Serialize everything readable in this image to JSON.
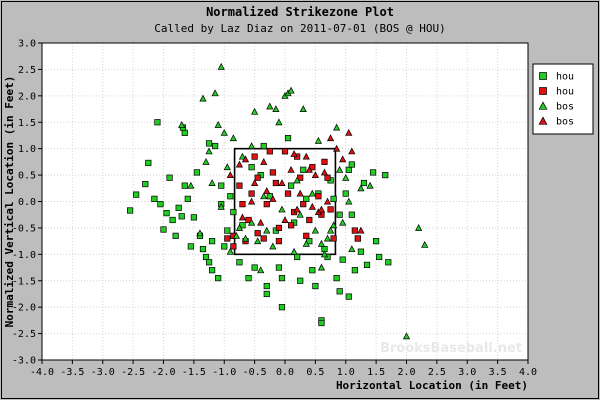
{
  "chart_data": {
    "type": "scatter",
    "title": "Normalized Strikezone Plot",
    "subtitle": "Called by Laz Diaz on 2011-07-01 (BOS @ HOU)",
    "xlabel": "Horizontal Location (in Feet)",
    "ylabel": "Normalized Vertical Location (in Feet)",
    "xlim": [
      -4.0,
      4.0
    ],
    "ylim": [
      -3.0,
      3.0
    ],
    "x_ticks": [
      "-4.0",
      "-3.5",
      "-3.0",
      "-2.5",
      "-2.0",
      "-1.5",
      "-1.0",
      "-0.5",
      "0.0",
      "0.5",
      "1.0",
      "1.5",
      "2.0",
      "2.5",
      "3.0",
      "3.5",
      "4.0"
    ],
    "y_ticks": [
      "3.0",
      "2.5",
      "2.0",
      "1.5",
      "1.0",
      "0.5",
      "0.0",
      "-0.5",
      "-1.0",
      "-1.5",
      "-2.0",
      "-2.5",
      "-3.0"
    ],
    "grid": true,
    "strike_zone": {
      "x": [
        -0.83,
        0.83
      ],
      "y": [
        -1.0,
        1.0
      ]
    },
    "legend_position": "right",
    "watermark": "BrooksBaseball.net",
    "series": [
      {
        "name": "hou",
        "marker": "square",
        "color": "#22cc22",
        "points": [
          [
            -2.55,
            -0.17
          ],
          [
            -2.45,
            0.13
          ],
          [
            -2.3,
            0.33
          ],
          [
            -2.25,
            0.73
          ],
          [
            -2.1,
            1.5
          ],
          [
            -2.15,
            0.05
          ],
          [
            -2.05,
            -0.05
          ],
          [
            -2.0,
            -0.53
          ],
          [
            -1.95,
            -0.22
          ],
          [
            -1.9,
            0.45
          ],
          [
            -1.85,
            -0.35
          ],
          [
            -1.8,
            -0.65
          ],
          [
            -1.75,
            -0.12
          ],
          [
            -1.7,
            -0.28
          ],
          [
            -1.65,
            1.3
          ],
          [
            -1.68,
            1.4
          ],
          [
            -1.65,
            0.3
          ],
          [
            -1.6,
            0.05
          ],
          [
            -1.55,
            -0.85
          ],
          [
            -1.5,
            -0.3
          ],
          [
            -1.45,
            0.55
          ],
          [
            -1.4,
            -0.65
          ],
          [
            -1.35,
            -0.9
          ],
          [
            -1.3,
            -1.05
          ],
          [
            -1.25,
            -1.15
          ],
          [
            -1.2,
            -0.75
          ],
          [
            -1.25,
            1.1
          ],
          [
            -1.2,
            -1.3
          ],
          [
            -1.15,
            1.05
          ],
          [
            -1.1,
            -1.45
          ],
          [
            -1.05,
            0.3
          ],
          [
            -1.05,
            -0.05
          ],
          [
            -1.0,
            -0.85
          ],
          [
            -0.95,
            -0.55
          ],
          [
            -0.9,
            0.1
          ],
          [
            -0.85,
            -0.2
          ],
          [
            -0.7,
            -0.45
          ],
          [
            -0.75,
            -1.15
          ],
          [
            -0.6,
            -1.45
          ],
          [
            -0.55,
            0.65
          ],
          [
            -0.5,
            -1.25
          ],
          [
            -0.4,
            0.5
          ],
          [
            -0.35,
            1.05
          ],
          [
            -0.3,
            -1.6
          ],
          [
            -0.25,
            0.1
          ],
          [
            -0.3,
            -1.75
          ],
          [
            -0.15,
            -0.55
          ],
          [
            -0.1,
            -1.25
          ],
          [
            -0.05,
            -1.45
          ],
          [
            -0.05,
            -2.0
          ],
          [
            0.05,
            1.2
          ],
          [
            0.1,
            0.3
          ],
          [
            0.15,
            -0.4
          ],
          [
            0.2,
            -1.05
          ],
          [
            0.25,
            -1.5
          ],
          [
            0.3,
            0.6
          ],
          [
            0.35,
            0.05
          ],
          [
            0.4,
            -0.75
          ],
          [
            0.45,
            -1.3
          ],
          [
            0.5,
            -1.6
          ],
          [
            0.55,
            0.15
          ],
          [
            0.6,
            -2.25
          ],
          [
            0.6,
            -2.3
          ],
          [
            0.65,
            -0.9
          ],
          [
            0.7,
            -1.05
          ],
          [
            0.75,
            0.4
          ],
          [
            0.8,
            0.05
          ],
          [
            0.85,
            -1.45
          ],
          [
            0.9,
            -1.7
          ],
          [
            0.9,
            -0.25
          ],
          [
            0.95,
            -1.1
          ],
          [
            1.0,
            0.15
          ],
          [
            1.05,
            0.6
          ],
          [
            1.05,
            -1.8
          ],
          [
            1.1,
            0.7
          ],
          [
            1.1,
            -0.25
          ],
          [
            1.15,
            -1.3
          ],
          [
            1.2,
            -0.7
          ],
          [
            1.25,
            -0.95
          ],
          [
            1.3,
            0.35
          ],
          [
            1.35,
            -1.2
          ],
          [
            1.45,
            0.55
          ],
          [
            1.5,
            -0.75
          ],
          [
            1.55,
            -1.05
          ],
          [
            1.65,
            0.5
          ],
          [
            1.7,
            -1.15
          ]
        ]
      },
      {
        "name": "hou",
        "marker": "square",
        "color": "#dd1111",
        "points": [
          [
            -0.95,
            -0.7
          ],
          [
            -0.85,
            -0.85
          ],
          [
            -0.85,
            -0.65
          ],
          [
            -0.75,
            0.3
          ],
          [
            -0.7,
            -0.05
          ],
          [
            -0.65,
            -0.75
          ],
          [
            -0.6,
            -0.35
          ],
          [
            -0.55,
            0.15
          ],
          [
            -0.5,
            0.85
          ],
          [
            -0.45,
            -0.6
          ],
          [
            -0.45,
            0.45
          ],
          [
            -0.35,
            -0.7
          ],
          [
            -0.3,
            -0.05
          ],
          [
            -0.25,
            0.95
          ],
          [
            -0.2,
            0.55
          ],
          [
            -0.15,
            0.35
          ],
          [
            -0.1,
            -0.5
          ],
          [
            -0.1,
            -0.75
          ],
          [
            0.0,
            0.95
          ],
          [
            0.05,
            0.15
          ],
          [
            0.1,
            -0.45
          ],
          [
            0.15,
            -0.2
          ],
          [
            0.2,
            0.85
          ],
          [
            0.25,
            0.45
          ],
          [
            0.3,
            -0.05
          ],
          [
            0.35,
            -0.65
          ],
          [
            0.4,
            -0.35
          ],
          [
            0.45,
            0.65
          ],
          [
            0.55,
            0.1
          ],
          [
            0.6,
            -0.25
          ],
          [
            0.65,
            0.75
          ],
          [
            0.7,
            0.45
          ],
          [
            0.75,
            -0.15
          ],
          [
            0.8,
            -0.7
          ],
          [
            1.15,
            -0.55
          ],
          [
            1.2,
            -0.7
          ]
        ]
      },
      {
        "name": "bos",
        "marker": "triangle",
        "color": "#22cc22",
        "points": [
          [
            -1.7,
            1.45
          ],
          [
            -1.55,
            0.3
          ],
          [
            -1.4,
            -0.6
          ],
          [
            -1.35,
            1.95
          ],
          [
            -1.3,
            0.75
          ],
          [
            -1.25,
            0.95
          ],
          [
            -1.2,
            0.35
          ],
          [
            -1.15,
            2.05
          ],
          [
            -1.1,
            1.45
          ],
          [
            -1.05,
            -0.1
          ],
          [
            -1.05,
            2.55
          ],
          [
            -1.0,
            1.3
          ],
          [
            -0.95,
            0.65
          ],
          [
            -0.9,
            -0.95
          ],
          [
            -0.85,
            1.2
          ],
          [
            -0.8,
            -0.65
          ],
          [
            -0.75,
            -0.5
          ],
          [
            -0.7,
            0.85
          ],
          [
            -0.65,
            -0.7
          ],
          [
            -0.55,
            1.05
          ],
          [
            -0.55,
            -0.4
          ],
          [
            -0.5,
            1.7
          ],
          [
            -0.45,
            -0.75
          ],
          [
            -0.4,
            -1.3
          ],
          [
            -0.35,
            0.1
          ],
          [
            -0.3,
            -0.55
          ],
          [
            -0.25,
            1.8
          ],
          [
            -0.2,
            -0.85
          ],
          [
            -0.15,
            1.75
          ],
          [
            -0.1,
            1.5
          ],
          [
            -0.05,
            -0.15
          ],
          [
            0.0,
            2.0
          ],
          [
            0.05,
            2.05
          ],
          [
            0.1,
            2.1
          ],
          [
            0.15,
            -0.95
          ],
          [
            0.2,
            0.4
          ],
          [
            0.25,
            -0.25
          ],
          [
            0.3,
            1.75
          ],
          [
            0.35,
            -0.8
          ],
          [
            0.45,
            0.15
          ],
          [
            0.5,
            -0.55
          ],
          [
            0.55,
            1.15
          ],
          [
            0.6,
            -0.8
          ],
          [
            0.6,
            -1.25
          ],
          [
            0.65,
            -1.0
          ],
          [
            0.7,
            -0.7
          ],
          [
            0.75,
            -0.55
          ],
          [
            0.8,
            -0.45
          ],
          [
            0.85,
            1.4
          ],
          [
            0.9,
            0.6
          ],
          [
            0.95,
            -0.4
          ],
          [
            1.0,
            0.45
          ],
          [
            1.05,
            0.0
          ],
          [
            1.1,
            -0.9
          ],
          [
            1.25,
            0.25
          ],
          [
            1.4,
            0.3
          ],
          [
            2.2,
            -0.5
          ],
          [
            2.3,
            -0.82
          ],
          [
            2.0,
            -2.55
          ]
        ]
      },
      {
        "name": "bos",
        "marker": "triangle",
        "color": "#dd1111",
        "points": [
          [
            -0.9,
            0.5
          ],
          [
            -0.75,
            0.7
          ],
          [
            -0.7,
            -0.3
          ],
          [
            -0.65,
            0.8
          ],
          [
            -0.55,
            0.0
          ],
          [
            -0.5,
            0.35
          ],
          [
            -0.4,
            -0.4
          ],
          [
            -0.35,
            0.75
          ],
          [
            -0.3,
            0.2
          ],
          [
            -0.2,
            0.05
          ],
          [
            -0.05,
            0.35
          ],
          [
            0.0,
            -0.35
          ],
          [
            0.1,
            0.6
          ],
          [
            0.15,
            0.9
          ],
          [
            0.2,
            -0.15
          ],
          [
            0.25,
            0.15
          ],
          [
            0.35,
            0.85
          ],
          [
            0.4,
            0.6
          ],
          [
            0.45,
            -0.1
          ],
          [
            0.5,
            0.5
          ],
          [
            0.55,
            -0.2
          ],
          [
            0.6,
            -0.15
          ],
          [
            0.65,
            0.55
          ],
          [
            0.7,
            0.0
          ],
          [
            0.75,
            1.2
          ],
          [
            0.85,
            1.0
          ],
          [
            0.95,
            0.8
          ],
          [
            1.05,
            1.3
          ],
          [
            1.1,
            0.95
          ],
          [
            1.25,
            -0.55
          ]
        ]
      }
    ]
  }
}
